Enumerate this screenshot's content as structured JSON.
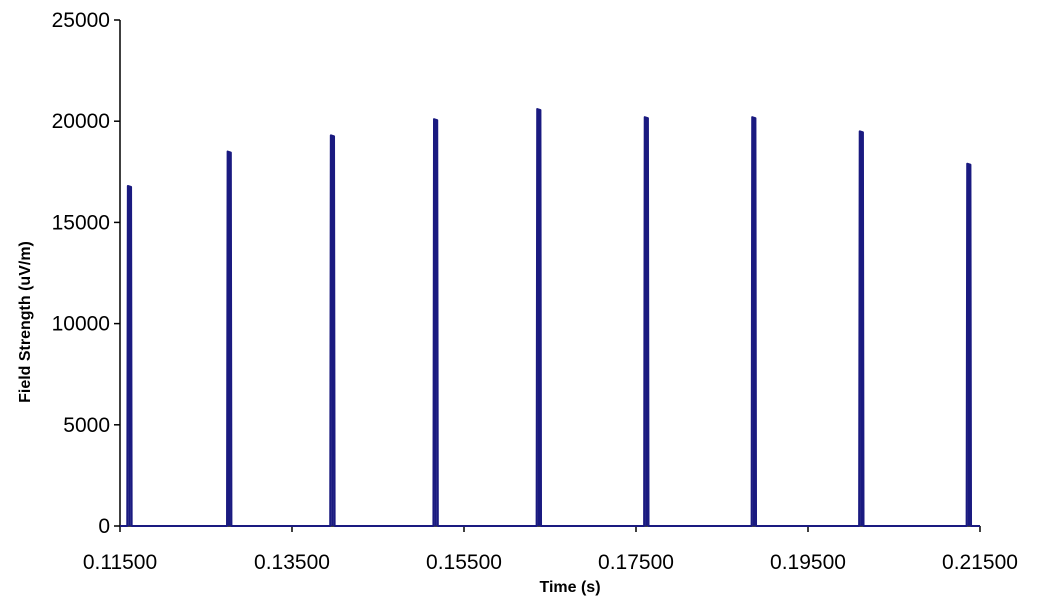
{
  "chart_data": {
    "type": "line",
    "title": "",
    "xlabel": "Time (s)",
    "ylabel": "Field Strength (uV/m)",
    "xlim": [
      0.115,
      0.215
    ],
    "ylim": [
      0,
      25000
    ],
    "x_tick_labels": [
      "0.11500",
      "0.13500",
      "0.15500",
      "0.17500",
      "0.19500",
      "0.21500"
    ],
    "x_ticks": [
      0.115,
      0.135,
      0.155,
      0.175,
      0.195,
      0.215
    ],
    "y_tick_labels": [
      "0",
      "5000",
      "10000",
      "15000",
      "20000",
      "25000"
    ],
    "y_ticks": [
      0,
      5000,
      10000,
      15000,
      20000,
      25000
    ],
    "grid": false,
    "legend": "none",
    "line_color": "#1a1a80",
    "series": [
      {
        "pulses": [
          {
            "x": 0.1161,
            "peak": 16800
          },
          {
            "x": 0.1277,
            "peak": 18500
          },
          {
            "x": 0.1397,
            "peak": 19300
          },
          {
            "x": 0.1517,
            "peak": 20100
          },
          {
            "x": 0.1637,
            "peak": 20600
          },
          {
            "x": 0.1762,
            "peak": 20200
          },
          {
            "x": 0.1887,
            "peak": 20200
          },
          {
            "x": 0.2012,
            "peak": 19500
          },
          {
            "x": 0.2137,
            "peak": 17900
          }
        ]
      }
    ]
  }
}
